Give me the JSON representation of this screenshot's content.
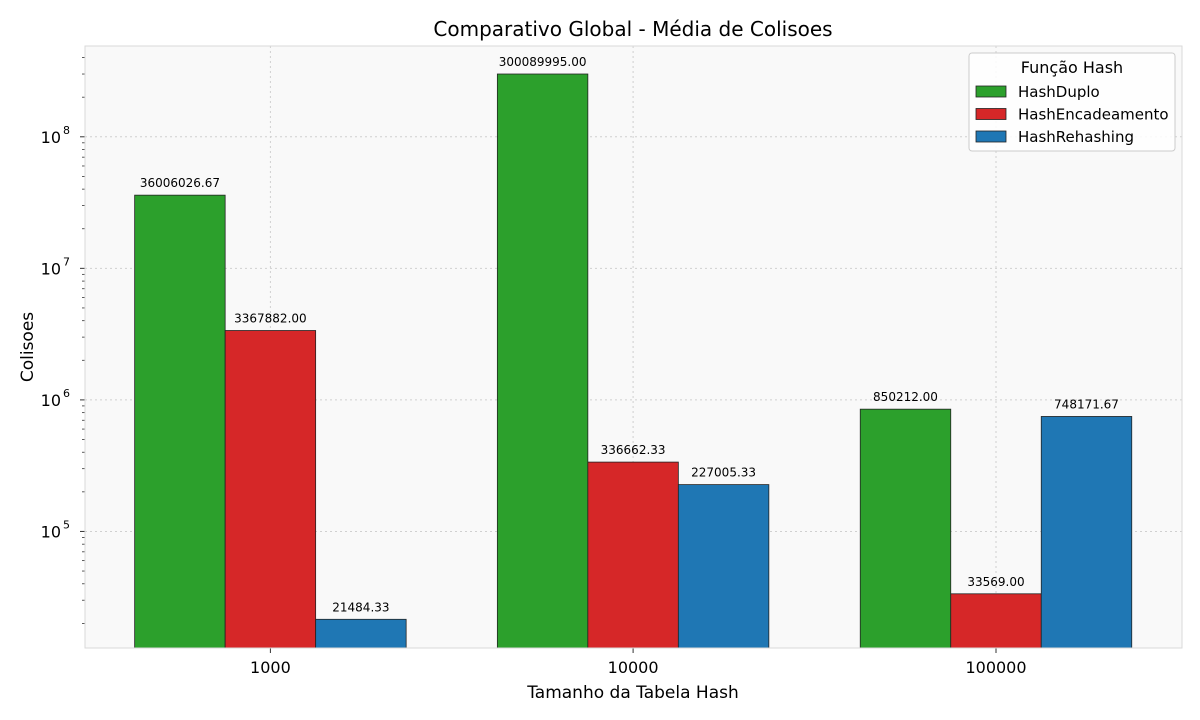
{
  "chart_data": {
    "type": "bar",
    "title": "Comparativo Global - Média de Colisoes",
    "xlabel": "Tamanho da Tabela Hash",
    "ylabel": "Colisoes",
    "scale": "log",
    "categories": [
      "1000",
      "10000",
      "100000"
    ],
    "series": [
      {
        "name": "HashDuplo",
        "color": "#2ca02c",
        "values": [
          36006026.67,
          300089995.0,
          850212.0
        ],
        "labels": [
          "36006026.67",
          "300089995.00",
          "850212.00"
        ]
      },
      {
        "name": "HashEncadeamento",
        "color": "#d62728",
        "values": [
          3367882.0,
          336662.33,
          33569.0
        ],
        "labels": [
          "3367882.00",
          "336662.33",
          "33569.00"
        ]
      },
      {
        "name": "HashRehashing",
        "color": "#1f77b4",
        "values": [
          21484.33,
          227005.33,
          748171.67
        ],
        "labels": [
          "21484.33",
          "227005.33",
          "748171.67"
        ]
      }
    ],
    "y_ticks": [
      {
        "value": 100000,
        "base": "10",
        "exp": "5"
      },
      {
        "value": 1000000,
        "base": "10",
        "exp": "6"
      },
      {
        "value": 10000000,
        "base": "10",
        "exp": "7"
      },
      {
        "value": 100000000,
        "base": "10",
        "exp": "8"
      }
    ],
    "ylim": [
      13000,
      490000000
    ],
    "legend": {
      "title": "Função Hash",
      "position": "top-right"
    },
    "grid": true
  }
}
